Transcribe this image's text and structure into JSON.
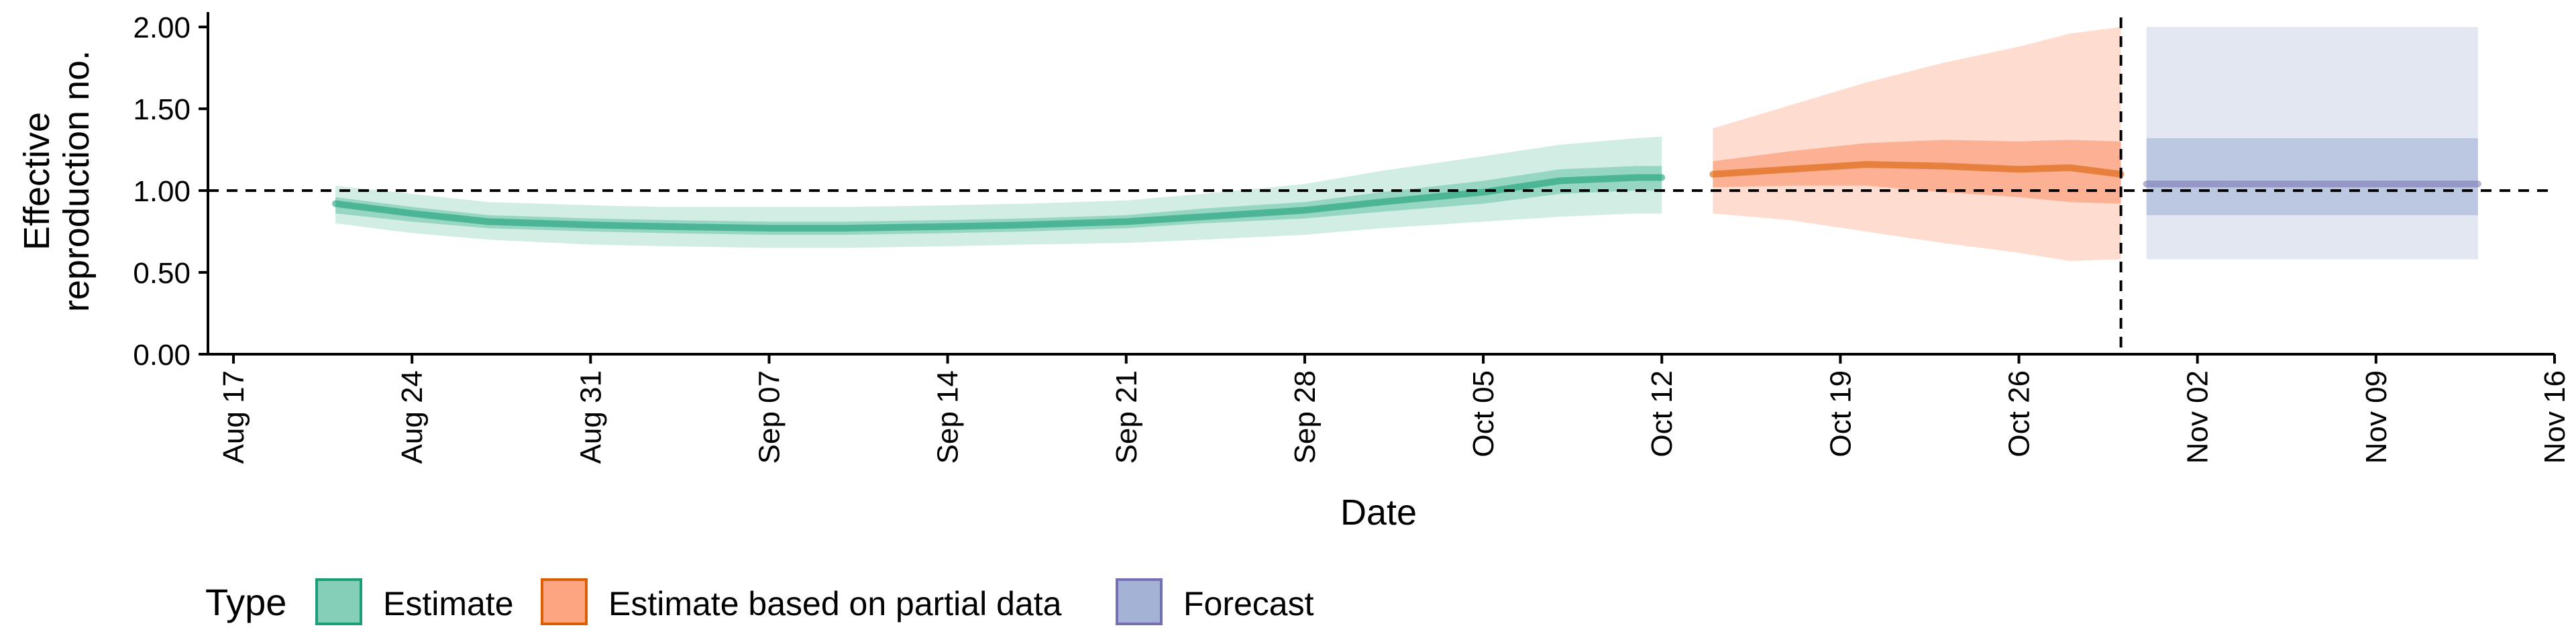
{
  "chart_data": {
    "type": "area",
    "title": "",
    "xlabel": "Date",
    "ylabel": "Effective reproduction no.",
    "ylabel_lines": [
      "Effective",
      "reproduction no."
    ],
    "x_type": "date",
    "xlim": [
      "2020-08-16",
      "2020-11-16"
    ],
    "ylim": [
      0,
      2.05
    ],
    "x_ticks": [
      {
        "date": "2020-08-17",
        "label": "Aug 17"
      },
      {
        "date": "2020-08-24",
        "label": "Aug 24"
      },
      {
        "date": "2020-08-31",
        "label": "Aug 31"
      },
      {
        "date": "2020-09-07",
        "label": "Sep 07"
      },
      {
        "date": "2020-09-14",
        "label": "Sep 14"
      },
      {
        "date": "2020-09-21",
        "label": "Sep 21"
      },
      {
        "date": "2020-09-28",
        "label": "Sep 28"
      },
      {
        "date": "2020-10-05",
        "label": "Oct 05"
      },
      {
        "date": "2020-10-12",
        "label": "Oct 12"
      },
      {
        "date": "2020-10-19",
        "label": "Oct 19"
      },
      {
        "date": "2020-10-26",
        "label": "Oct 26"
      },
      {
        "date": "2020-11-02",
        "label": "Nov 02"
      },
      {
        "date": "2020-11-09",
        "label": "Nov 09"
      },
      {
        "date": "2020-11-16",
        "label": "Nov 16"
      }
    ],
    "y_ticks": [
      {
        "value": 0,
        "label": "0.00"
      },
      {
        "value": 0.5,
        "label": "0.50"
      },
      {
        "value": 1,
        "label": "1.00"
      },
      {
        "value": 1.5,
        "label": "1.50"
      },
      {
        "value": 2,
        "label": "2.00"
      }
    ],
    "reference_lines": {
      "horizontal_y": 1.0,
      "vertical_date": "2020-10-30"
    },
    "grid": false,
    "legend_position": "bottom-left",
    "legend_title": "Type",
    "series": [
      {
        "name": "Estimate",
        "color": "#1b9e77",
        "fill": "#66c2a5",
        "outer_opacity": 0.3,
        "inner_opacity": 0.55,
        "median_opacity": 0.6,
        "points": [
          {
            "date": "2020-08-21",
            "median": 0.92,
            "lower_90": 0.8,
            "upper_90": 1.03,
            "lower_50": 0.86,
            "upper_50": 0.96
          },
          {
            "date": "2020-08-24",
            "median": 0.86,
            "lower_90": 0.74,
            "upper_90": 0.98,
            "lower_50": 0.81,
            "upper_50": 0.9
          },
          {
            "date": "2020-08-27",
            "median": 0.81,
            "lower_90": 0.7,
            "upper_90": 0.93,
            "lower_50": 0.77,
            "upper_50": 0.85
          },
          {
            "date": "2020-08-31",
            "median": 0.79,
            "lower_90": 0.67,
            "upper_90": 0.91,
            "lower_50": 0.75,
            "upper_50": 0.83
          },
          {
            "date": "2020-09-03",
            "median": 0.78,
            "lower_90": 0.66,
            "upper_90": 0.9,
            "lower_50": 0.74,
            "upper_50": 0.82
          },
          {
            "date": "2020-09-07",
            "median": 0.77,
            "lower_90": 0.65,
            "upper_90": 0.9,
            "lower_50": 0.73,
            "upper_50": 0.81
          },
          {
            "date": "2020-09-10",
            "median": 0.77,
            "lower_90": 0.65,
            "upper_90": 0.9,
            "lower_50": 0.73,
            "upper_50": 0.81
          },
          {
            "date": "2020-09-14",
            "median": 0.78,
            "lower_90": 0.66,
            "upper_90": 0.91,
            "lower_50": 0.74,
            "upper_50": 0.82
          },
          {
            "date": "2020-09-17",
            "median": 0.79,
            "lower_90": 0.67,
            "upper_90": 0.92,
            "lower_50": 0.75,
            "upper_50": 0.83
          },
          {
            "date": "2020-09-21",
            "median": 0.81,
            "lower_90": 0.68,
            "upper_90": 0.94,
            "lower_50": 0.77,
            "upper_50": 0.85
          },
          {
            "date": "2020-09-24",
            "median": 0.84,
            "lower_90": 0.7,
            "upper_90": 0.98,
            "lower_50": 0.8,
            "upper_50": 0.89
          },
          {
            "date": "2020-09-28",
            "median": 0.88,
            "lower_90": 0.73,
            "upper_90": 1.04,
            "lower_50": 0.83,
            "upper_50": 0.93
          },
          {
            "date": "2020-10-01",
            "median": 0.93,
            "lower_90": 0.77,
            "upper_90": 1.12,
            "lower_50": 0.87,
            "upper_50": 0.99
          },
          {
            "date": "2020-10-05",
            "median": 0.99,
            "lower_90": 0.81,
            "upper_90": 1.21,
            "lower_50": 0.92,
            "upper_50": 1.06
          },
          {
            "date": "2020-10-08",
            "median": 1.06,
            "lower_90": 0.84,
            "upper_90": 1.28,
            "lower_50": 0.98,
            "upper_50": 1.13
          },
          {
            "date": "2020-10-11",
            "median": 1.08,
            "lower_90": 0.86,
            "upper_90": 1.32,
            "lower_50": 1.0,
            "upper_50": 1.15
          },
          {
            "date": "2020-10-12",
            "median": 1.08,
            "lower_90": 0.86,
            "upper_90": 1.33,
            "lower_50": 1.0,
            "upper_50": 1.15
          }
        ]
      },
      {
        "name": "Estimate based on partial data",
        "color": "#d95f02",
        "fill": "#fc8d62",
        "outer_opacity": 0.3,
        "inner_opacity": 0.55,
        "median_opacity": 0.6,
        "points": [
          {
            "date": "2020-10-14",
            "median": 1.1,
            "lower_90": 0.86,
            "upper_90": 1.38,
            "lower_50": 1.02,
            "upper_50": 1.18
          },
          {
            "date": "2020-10-17",
            "median": 1.13,
            "lower_90": 0.82,
            "upper_90": 1.52,
            "lower_50": 1.03,
            "upper_50": 1.24
          },
          {
            "date": "2020-10-20",
            "median": 1.16,
            "lower_90": 0.75,
            "upper_90": 1.66,
            "lower_50": 1.03,
            "upper_50": 1.29
          },
          {
            "date": "2020-10-23",
            "median": 1.15,
            "lower_90": 0.68,
            "upper_90": 1.78,
            "lower_50": 0.99,
            "upper_50": 1.31
          },
          {
            "date": "2020-10-26",
            "median": 1.13,
            "lower_90": 0.62,
            "upper_90": 1.88,
            "lower_50": 0.96,
            "upper_50": 1.3
          },
          {
            "date": "2020-10-28",
            "median": 1.14,
            "lower_90": 0.57,
            "upper_90": 1.96,
            "lower_50": 0.93,
            "upper_50": 1.31
          },
          {
            "date": "2020-10-30",
            "median": 1.1,
            "lower_90": 0.58,
            "upper_90": 2.0,
            "lower_50": 0.92,
            "upper_50": 1.3
          }
        ]
      },
      {
        "name": "Forecast",
        "color": "#7570b3",
        "fill": "#8da0cb",
        "outer_opacity": 0.25,
        "inner_opacity": 0.45,
        "median_opacity": 0.55,
        "points": [
          {
            "date": "2020-10-31",
            "median": 1.04,
            "lower_90": 0.58,
            "upper_90": 2.0,
            "lower_50": 0.85,
            "upper_50": 1.32
          },
          {
            "date": "2020-11-13",
            "median": 1.04,
            "lower_90": 0.58,
            "upper_90": 2.0,
            "lower_50": 0.85,
            "upper_50": 1.32
          }
        ]
      }
    ]
  }
}
